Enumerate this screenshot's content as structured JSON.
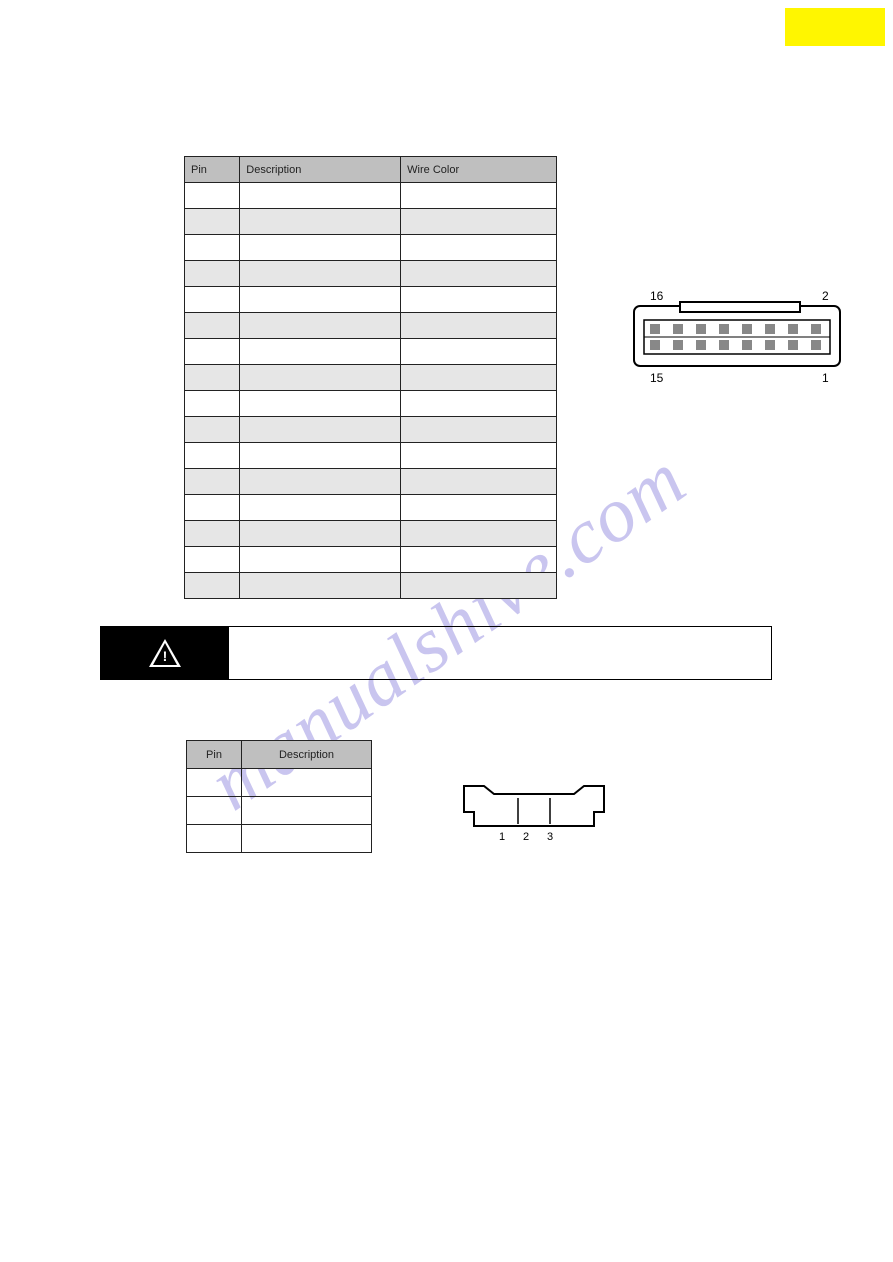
{
  "top_label": "",
  "table_a": {
    "headers": {
      "pin": "Pin",
      "description": "Description",
      "color": "Wire Color"
    },
    "rows": [
      {
        "pin": "",
        "desc": "",
        "color": ""
      },
      {
        "pin": "",
        "desc": "",
        "color": ""
      },
      {
        "pin": "",
        "desc": "",
        "color": ""
      },
      {
        "pin": "",
        "desc": "",
        "color": ""
      },
      {
        "pin": "",
        "desc": "",
        "color": ""
      },
      {
        "pin": "",
        "desc": "",
        "color": ""
      },
      {
        "pin": "",
        "desc": "",
        "color": ""
      },
      {
        "pin": "",
        "desc": "",
        "color": ""
      },
      {
        "pin": "",
        "desc": "",
        "color": ""
      },
      {
        "pin": "",
        "desc": "",
        "color": ""
      },
      {
        "pin": "",
        "desc": "",
        "color": ""
      },
      {
        "pin": "",
        "desc": "",
        "color": ""
      },
      {
        "pin": "",
        "desc": "",
        "color": ""
      },
      {
        "pin": "",
        "desc": "",
        "color": ""
      },
      {
        "pin": "",
        "desc": "",
        "color": ""
      },
      {
        "pin": "",
        "desc": "",
        "color": ""
      }
    ],
    "shaded_rows": [
      1,
      3,
      5,
      7,
      9,
      11,
      13,
      15
    ]
  },
  "connector_a": {
    "labels": {
      "top_left": "16",
      "top_right": "2",
      "bottom_left": "15",
      "bottom_right": "1"
    },
    "pins_per_row": 8,
    "pin_fill": "#888888",
    "outline": "#000000",
    "background": "#ffffff"
  },
  "warning": {
    "icon_symbol": "!",
    "text": ""
  },
  "table_b": {
    "headers": {
      "pin": "Pin",
      "description": "Description"
    },
    "rows": [
      {
        "pin": "",
        "desc": ""
      },
      {
        "pin": "",
        "desc": ""
      },
      {
        "pin": "",
        "desc": ""
      }
    ]
  },
  "connector_b": {
    "labels": {
      "p1": "1",
      "p2": "2",
      "p3": "3"
    },
    "outline": "#000000",
    "background": "#ffffff"
  },
  "watermark_text": "manualshive.com",
  "colors": {
    "highlight": "#fff600",
    "header_bg": "#bfbfbf",
    "row_shade": "#e6e6e6",
    "page_bg": "#ffffff",
    "text": "#222222",
    "watermark": "rgba(100,90,210,0.35)"
  }
}
